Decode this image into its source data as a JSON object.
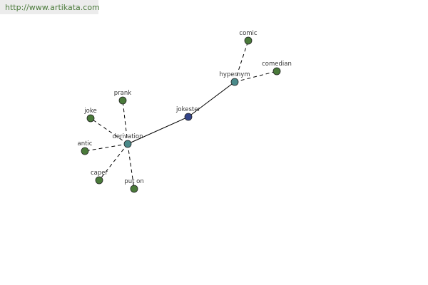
{
  "header": {
    "url": "http://www.artikata.com"
  },
  "nodes": [
    {
      "label": "jokester"
    },
    {
      "label": "hypernym"
    },
    {
      "label": "derivation"
    },
    {
      "label": "comic"
    },
    {
      "label": "comedian"
    },
    {
      "label": "prank"
    },
    {
      "label": "joke"
    },
    {
      "label": "antic"
    },
    {
      "label": "caper"
    },
    {
      "label": "put on"
    }
  ]
}
